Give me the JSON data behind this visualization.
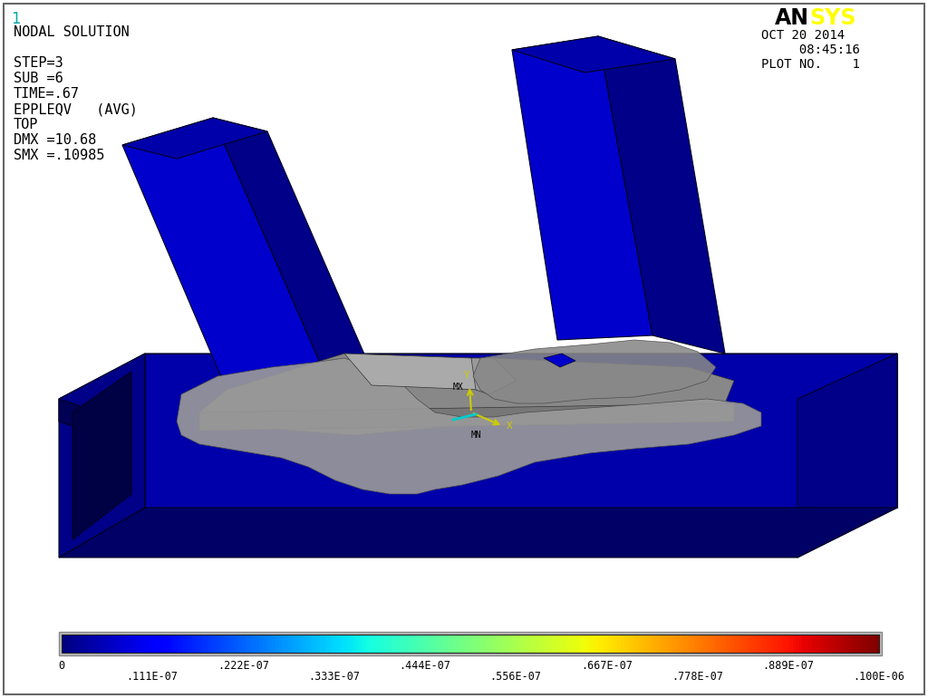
{
  "background_color": "#ffffff",
  "fig_width": 10.24,
  "fig_height": 7.7,
  "left_text_lines": [
    "NODAL SOLUTION",
    "",
    "STEP=3",
    "SUB =6",
    "TIME=.67",
    "EPPLEQV   (AVG)",
    "TOP",
    "DMX =10.68",
    "SMX =.10985"
  ],
  "top_left_number": "1",
  "top_right_lines": [
    "OCT 20 2014",
    "     08:45:16",
    "PLOT NO.    1"
  ],
  "colorbar_labels": [
    "0",
    ".111E-07",
    ".222E-07",
    ".333E-07",
    ".444E-07",
    ".556E-07",
    ".667E-07",
    ".778E-07",
    ".889E-07",
    ".100E-06"
  ],
  "deep_blue": "#0000cc",
  "mid_blue": "#0000aa",
  "dark_blue": "#000088",
  "darker_blue": "#000066",
  "gray1": "#888888",
  "gray2": "#999999",
  "gray3": "#aaaaaa",
  "gray4": "#777777",
  "edge_dark": "#000022"
}
